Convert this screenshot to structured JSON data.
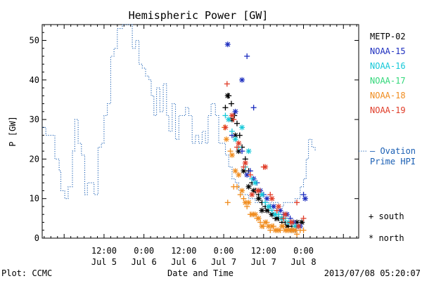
{
  "chart_data": {
    "type": "scatter",
    "title": "Hemispheric Power [GW]",
    "ylabel": "P [GW]",
    "xlabel": "Date and Time",
    "x_unit": "hours since 2013/07/05 00:00",
    "xlim": [
      -6.6,
      88.6
    ],
    "ylim": [
      0,
      54
    ],
    "yticks": [
      0,
      10,
      20,
      30,
      40,
      50
    ],
    "xticks": [
      {
        "x": 12,
        "time": "12:00",
        "date": "Jul 5"
      },
      {
        "x": 24,
        "time": "0:00",
        "date": "Jul 6"
      },
      {
        "x": 36,
        "time": "12:00",
        "date": "Jul 6"
      },
      {
        "x": 48,
        "time": "0:00",
        "date": "Jul 7"
      },
      {
        "x": 60,
        "time": "12:00",
        "date": "Jul 7"
      },
      {
        "x": 72,
        "time": "0:00",
        "date": "Jul 8"
      }
    ],
    "ovation": {
      "name": "Ovation Prime HPI",
      "label_lines": [
        "– Ovation",
        "Prime HPI"
      ],
      "color": "#1a5fb4",
      "last_value": 22,
      "points": [
        [
          -6.5,
          28
        ],
        [
          -5.5,
          26
        ],
        [
          -3.8,
          26
        ],
        [
          -2.8,
          20
        ],
        [
          -1.5,
          17
        ],
        [
          -1,
          12
        ],
        [
          0.2,
          10
        ],
        [
          1.2,
          13
        ],
        [
          2.5,
          22
        ],
        [
          3.2,
          30
        ],
        [
          4.2,
          24
        ],
        [
          5.2,
          21
        ],
        [
          6.2,
          11
        ],
        [
          7,
          14
        ],
        [
          8,
          14
        ],
        [
          9,
          11
        ],
        [
          10.2,
          23
        ],
        [
          11.2,
          24
        ],
        [
          12,
          31
        ],
        [
          13,
          34
        ],
        [
          14,
          46
        ],
        [
          15,
          48
        ],
        [
          16,
          53
        ],
        [
          17.5,
          54
        ],
        [
          19,
          54
        ],
        [
          20.5,
          48
        ],
        [
          21.5,
          50
        ],
        [
          22.5,
          44
        ],
        [
          23.5,
          43
        ],
        [
          24.5,
          41
        ],
        [
          25.5,
          40
        ],
        [
          26.2,
          36
        ],
        [
          27,
          31
        ],
        [
          27.8,
          38
        ],
        [
          28.8,
          32
        ],
        [
          29.8,
          39
        ],
        [
          30.8,
          31
        ],
        [
          31.5,
          27
        ],
        [
          32.5,
          34
        ],
        [
          33.5,
          25
        ],
        [
          34.5,
          31
        ],
        [
          35.5,
          31
        ],
        [
          36.5,
          33
        ],
        [
          37.5,
          31
        ],
        [
          38.5,
          24
        ],
        [
          39.5,
          26
        ],
        [
          40.5,
          24
        ],
        [
          41.5,
          27
        ],
        [
          42.5,
          24
        ],
        [
          43.3,
          31
        ],
        [
          44.2,
          34
        ],
        [
          45.5,
          31
        ],
        [
          46.5,
          24
        ],
        [
          47.5,
          24
        ],
        [
          48.5,
          21
        ],
        [
          49.5,
          18
        ],
        [
          50.5,
          15
        ],
        [
          51.5,
          14
        ],
        [
          52.5,
          12
        ],
        [
          53.5,
          11
        ],
        [
          54.5,
          11
        ],
        [
          55.5,
          10
        ],
        [
          56.5,
          10
        ],
        [
          57.5,
          9
        ],
        [
          58.5,
          9
        ],
        [
          60,
          9
        ],
        [
          61.5,
          9
        ],
        [
          63,
          9
        ],
        [
          64.5,
          8
        ],
        [
          66,
          9
        ],
        [
          68,
          9
        ],
        [
          69.5,
          10
        ],
        [
          71,
          13
        ],
        [
          72,
          15
        ],
        [
          72.8,
          20
        ],
        [
          73.5,
          25
        ],
        [
          74.5,
          23
        ],
        [
          75.5,
          22
        ]
      ]
    },
    "series": [
      {
        "name": "METP-02",
        "color": "#000000",
        "south": [
          [
            48.5,
            33
          ],
          [
            49.5,
            36
          ],
          [
            50.3,
            34
          ],
          [
            51.2,
            31
          ],
          [
            52,
            29
          ],
          [
            52.8,
            26
          ],
          [
            53.5,
            23
          ],
          [
            54.5,
            20
          ],
          [
            55.5,
            17
          ],
          [
            56.5,
            14
          ],
          [
            57.5,
            12
          ],
          [
            58.5,
            11
          ],
          [
            59.5,
            9
          ],
          [
            60.5,
            8
          ],
          [
            61.5,
            7
          ],
          [
            62.5,
            6
          ],
          [
            63.5,
            5
          ],
          [
            64.5,
            5
          ],
          [
            65.5,
            4
          ],
          [
            66.5,
            4
          ],
          [
            67.5,
            3
          ],
          [
            68.5,
            3
          ],
          [
            69.5,
            2
          ],
          [
            70.5,
            3
          ],
          [
            71.5,
            4
          ]
        ],
        "north": [
          [
            49.2,
            36
          ],
          [
            50.5,
            30
          ],
          [
            51.5,
            26
          ],
          [
            52.5,
            22
          ],
          [
            54,
            17
          ],
          [
            55.5,
            13
          ],
          [
            57,
            12
          ],
          [
            58.5,
            10
          ],
          [
            59.5,
            7
          ],
          [
            61,
            7
          ],
          [
            62.5,
            6
          ],
          [
            64,
            5
          ],
          [
            65.5,
            5
          ],
          [
            67,
            3
          ],
          [
            68.5,
            2
          ],
          [
            70,
            4
          ],
          [
            71.5,
            4
          ]
        ]
      },
      {
        "name": "NOAA-15",
        "color": "#1c2dbf",
        "south": [
          [
            55,
            46
          ],
          [
            57,
            33
          ],
          [
            50.5,
            26
          ],
          [
            53.5,
            22
          ],
          [
            56,
            17
          ],
          [
            58,
            14
          ],
          [
            60,
            11
          ],
          [
            62,
            8
          ],
          [
            64,
            7
          ],
          [
            66,
            6
          ],
          [
            68,
            5
          ],
          [
            70,
            3
          ],
          [
            72,
            11
          ]
        ],
        "north": [
          [
            49.2,
            49
          ],
          [
            51.5,
            32
          ],
          [
            53.5,
            40
          ],
          [
            55,
            16
          ],
          [
            57,
            15
          ],
          [
            59,
            12
          ],
          [
            61,
            10
          ],
          [
            63,
            8
          ],
          [
            65,
            7
          ],
          [
            67,
            6
          ],
          [
            69,
            4
          ],
          [
            71,
            3
          ],
          [
            72.5,
            10
          ]
        ]
      },
      {
        "name": "NOAA-16",
        "color": "#14c8d8",
        "south": [
          [
            48.5,
            31
          ],
          [
            50.5,
            27
          ],
          [
            52.5,
            23
          ],
          [
            54.5,
            18
          ],
          [
            56.5,
            15
          ],
          [
            58.5,
            12
          ],
          [
            60.5,
            9
          ],
          [
            62.5,
            7
          ],
          [
            64.5,
            6
          ],
          [
            66.5,
            5
          ],
          [
            68.5,
            4
          ],
          [
            70.5,
            3
          ]
        ],
        "north": [
          [
            49.5,
            30
          ],
          [
            51.5,
            25
          ],
          [
            53.5,
            28
          ],
          [
            55.5,
            22
          ],
          [
            57.5,
            14
          ],
          [
            59.5,
            11
          ],
          [
            61.5,
            8
          ],
          [
            63.5,
            6
          ],
          [
            65.5,
            5
          ],
          [
            67.5,
            4
          ],
          [
            69.5,
            3
          ]
        ]
      },
      {
        "name": "NOAA-17",
        "color": "#32d87a",
        "south": [],
        "north": []
      },
      {
        "name": "NOAA-18",
        "color": "#f08c1e",
        "south": [
          [
            48.2,
            28
          ],
          [
            49.2,
            9
          ],
          [
            50,
            22
          ],
          [
            51,
            13
          ],
          [
            52,
            13
          ],
          [
            53,
            11
          ],
          [
            54,
            10
          ],
          [
            55,
            8
          ],
          [
            56,
            6
          ],
          [
            57,
            6
          ],
          [
            58,
            5
          ],
          [
            59,
            4
          ],
          [
            60,
            3
          ],
          [
            61,
            4
          ],
          [
            62,
            2
          ],
          [
            63,
            3
          ],
          [
            64,
            2
          ],
          [
            65,
            2
          ],
          [
            66,
            3
          ],
          [
            67,
            2
          ],
          [
            68,
            2
          ],
          [
            69,
            2
          ],
          [
            70,
            1
          ],
          [
            71,
            2
          ],
          [
            72,
            2
          ]
        ],
        "north": [
          [
            48.8,
            25
          ],
          [
            50.5,
            21
          ],
          [
            51.5,
            17
          ],
          [
            52.5,
            16
          ],
          [
            53.5,
            12
          ],
          [
            54.5,
            9
          ],
          [
            55.5,
            9
          ],
          [
            56.5,
            6
          ],
          [
            57.5,
            6
          ],
          [
            58.5,
            5
          ],
          [
            59.5,
            3
          ],
          [
            60.5,
            4
          ],
          [
            61.5,
            3
          ],
          [
            62.5,
            3
          ],
          [
            63.5,
            2
          ],
          [
            64.5,
            2
          ],
          [
            65.5,
            3
          ],
          [
            66.5,
            2
          ],
          [
            67.5,
            2
          ],
          [
            68.5,
            2
          ],
          [
            69.5,
            2
          ]
        ]
      },
      {
        "name": "NOAA-19",
        "color": "#e03c28",
        "south": [
          [
            49,
            39
          ],
          [
            51,
            30
          ],
          [
            52,
            23
          ],
          [
            54,
            18
          ],
          [
            56,
            16
          ],
          [
            58,
            12
          ],
          [
            60,
            18
          ],
          [
            62,
            11
          ],
          [
            64,
            7
          ],
          [
            66,
            5
          ],
          [
            68,
            4
          ],
          [
            70,
            9
          ],
          [
            72,
            5
          ]
        ],
        "north": [
          [
            48.5,
            28
          ],
          [
            50.5,
            31
          ],
          [
            52.5,
            24
          ],
          [
            54.5,
            19
          ],
          [
            56.5,
            11
          ],
          [
            58.5,
            12
          ],
          [
            60.5,
            18
          ],
          [
            62.5,
            10
          ],
          [
            64.5,
            8
          ],
          [
            66.5,
            6
          ],
          [
            68.5,
            4
          ],
          [
            70.5,
            3
          ]
        ]
      }
    ],
    "legend_symbols": {
      "south": "+ south",
      "north": "* north"
    },
    "footer": {
      "left": "Plot: CCMC",
      "right": "2013/07/08 05:20:07"
    }
  }
}
